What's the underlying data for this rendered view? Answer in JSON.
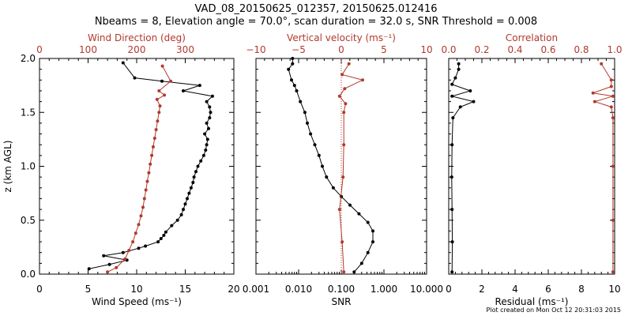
{
  "header": {
    "title_line1": "VAD_08_20150625_012357, 20150625.012416",
    "title_line2": "Nbeams = 8, Elevation angle = 70.0°, scan duration = 32.0 s, SNR Threshold = 0.008"
  },
  "footer": {
    "text": "Plot created on Mon Oct 12 20:31:03 2015"
  },
  "colors": {
    "black": "#000000",
    "red": "#b03a2e"
  },
  "chart_data": [
    {
      "type": "line",
      "title": "",
      "ylabel": "z (km AGL)",
      "ylim": [
        0,
        2.0
      ],
      "yticks": [
        "0.0",
        "0.5",
        "1.0",
        "1.5",
        "2.0"
      ],
      "bottom_axis": {
        "label": "Wind Speed (ms⁻¹)",
        "range": [
          0,
          20
        ],
        "ticks": [
          "0",
          "5",
          "10",
          "15",
          "20"
        ]
      },
      "top_axis": {
        "label": "Wind Direction (deg)",
        "range": [
          0,
          400
        ],
        "ticks": [
          "0",
          "100",
          "200",
          "300"
        ]
      },
      "series": [
        {
          "axis": "bottom",
          "color": "#000000",
          "points": [
            [
              5.1,
              0.05
            ],
            [
              7.2,
              0.09
            ],
            [
              9.0,
              0.13
            ],
            [
              6.6,
              0.17
            ],
            [
              8.6,
              0.2
            ],
            [
              10.2,
              0.24
            ],
            [
              10.9,
              0.26
            ],
            [
              12.2,
              0.3
            ],
            [
              12.5,
              0.33
            ],
            [
              12.8,
              0.36
            ],
            [
              13.0,
              0.39
            ],
            [
              13.6,
              0.45
            ],
            [
              14.2,
              0.5
            ],
            [
              14.6,
              0.55
            ],
            [
              14.8,
              0.6
            ],
            [
              15.0,
              0.65
            ],
            [
              15.2,
              0.7
            ],
            [
              15.4,
              0.75
            ],
            [
              15.6,
              0.8
            ],
            [
              15.8,
              0.85
            ],
            [
              15.9,
              0.9
            ],
            [
              16.1,
              0.95
            ],
            [
              16.3,
              1.0
            ],
            [
              16.6,
              1.05
            ],
            [
              16.9,
              1.1
            ],
            [
              17.1,
              1.15
            ],
            [
              17.2,
              1.2
            ],
            [
              17.3,
              1.25
            ],
            [
              17.0,
              1.3
            ],
            [
              17.4,
              1.35
            ],
            [
              17.2,
              1.4
            ],
            [
              17.5,
              1.45
            ],
            [
              17.6,
              1.5
            ],
            [
              17.5,
              1.55
            ],
            [
              17.2,
              1.6
            ],
            [
              17.8,
              1.65
            ],
            [
              14.8,
              1.7
            ],
            [
              16.5,
              1.75
            ],
            [
              12.6,
              1.79
            ],
            [
              9.8,
              1.82
            ],
            [
              8.6,
              1.96
            ]
          ]
        },
        {
          "axis": "top",
          "color": "#b03a2e",
          "points": [
            [
              140,
              0.02
            ],
            [
              158,
              0.06
            ],
            [
              176,
              0.14
            ],
            [
              184,
              0.22
            ],
            [
              192,
              0.3
            ],
            [
              198,
              0.38
            ],
            [
              204,
              0.46
            ],
            [
              209,
              0.54
            ],
            [
              213,
              0.62
            ],
            [
              216,
              0.7
            ],
            [
              219,
              0.78
            ],
            [
              222,
              0.86
            ],
            [
              225,
              0.94
            ],
            [
              228,
              1.02
            ],
            [
              231,
              1.1
            ],
            [
              234,
              1.18
            ],
            [
              237,
              1.26
            ],
            [
              240,
              1.34
            ],
            [
              243,
              1.42
            ],
            [
              246,
              1.5
            ],
            [
              248,
              1.56
            ],
            [
              242,
              1.62
            ],
            [
              257,
              1.66
            ],
            [
              246,
              1.7
            ],
            [
              270,
              1.79
            ],
            [
              253,
              1.93
            ]
          ]
        }
      ]
    },
    {
      "type": "line",
      "title": "",
      "xscale": "log",
      "bottom_axis": {
        "label": "SNR",
        "range": [
          0.001,
          10
        ],
        "ticks": [
          "0.001",
          "0.010",
          "0.100",
          "1.000",
          "10.000"
        ]
      },
      "top_axis": {
        "label": "Vertical velocity (ms⁻¹)",
        "range": [
          -10,
          10
        ],
        "ticks": [
          "−10",
          "−5",
          "0",
          "5",
          "10"
        ]
      },
      "ylim": [
        0,
        2.0
      ],
      "series": [
        {
          "axis": "bottom",
          "color": "#000000",
          "points": [
            [
              0.2,
              0.02
            ],
            [
              0.3,
              0.1
            ],
            [
              0.42,
              0.2
            ],
            [
              0.55,
              0.3
            ],
            [
              0.55,
              0.4
            ],
            [
              0.42,
              0.48
            ],
            [
              0.26,
              0.56
            ],
            [
              0.16,
              0.64
            ],
            [
              0.1,
              0.72
            ],
            [
              0.065,
              0.8
            ],
            [
              0.045,
              0.9
            ],
            [
              0.036,
              1.0
            ],
            [
              0.03,
              1.1
            ],
            [
              0.024,
              1.2
            ],
            [
              0.019,
              1.3
            ],
            [
              0.016,
              1.4
            ],
            [
              0.014,
              1.5
            ],
            [
              0.011,
              1.6
            ],
            [
              0.009,
              1.7
            ],
            [
              0.008,
              1.75
            ],
            [
              0.0068,
              1.8
            ],
            [
              0.0058,
              1.9
            ],
            [
              0.0072,
              1.95
            ],
            [
              0.0072,
              2.0
            ]
          ]
        },
        {
          "axis": "top",
          "color": "#b03a2e",
          "points": [
            [
              0.3,
              0.02
            ],
            [
              0.1,
              0.3
            ],
            [
              -0.2,
              0.6
            ],
            [
              0.2,
              0.9
            ],
            [
              0.3,
              1.2
            ],
            [
              0.3,
              1.5
            ],
            [
              0.5,
              1.58
            ],
            [
              -0.2,
              1.65
            ],
            [
              0.4,
              1.72
            ],
            [
              2.5,
              1.8
            ],
            [
              0.1,
              1.85
            ],
            [
              0.9,
              1.95
            ]
          ]
        }
      ]
    },
    {
      "type": "line",
      "title": "",
      "bottom_axis": {
        "label": "Residual (ms⁻¹)",
        "range": [
          0,
          10
        ],
        "ticks": [
          "0",
          "2",
          "4",
          "6",
          "8",
          "10"
        ]
      },
      "top_axis": {
        "label": "Correlation",
        "range": [
          0,
          1
        ],
        "ticks": [
          "0.0",
          "0.2",
          "0.4",
          "0.6",
          "0.8",
          "1.0"
        ]
      },
      "ylim": [
        0,
        2.0
      ],
      "series": [
        {
          "axis": "bottom",
          "color": "#000000",
          "points": [
            [
              0.2,
              0.02
            ],
            [
              0.22,
              0.3
            ],
            [
              0.2,
              0.6
            ],
            [
              0.18,
              0.9
            ],
            [
              0.2,
              1.2
            ],
            [
              0.25,
              1.45
            ],
            [
              0.7,
              1.55
            ],
            [
              1.5,
              1.6
            ],
            [
              0.2,
              1.65
            ],
            [
              1.3,
              1.7
            ],
            [
              0.2,
              1.76
            ],
            [
              0.4,
              1.82
            ],
            [
              0.6,
              1.9
            ],
            [
              0.6,
              1.95
            ]
          ]
        },
        {
          "axis": "top",
          "color": "#b03a2e",
          "points": [
            [
              0.99,
              0.02
            ],
            [
              0.99,
              0.5
            ],
            [
              0.99,
              1.0
            ],
            [
              0.99,
              1.45
            ],
            [
              0.98,
              1.55
            ],
            [
              0.88,
              1.6
            ],
            [
              0.99,
              1.65
            ],
            [
              0.87,
              1.68
            ],
            [
              0.98,
              1.74
            ],
            [
              0.98,
              1.8
            ],
            [
              0.92,
              1.95
            ]
          ]
        }
      ]
    }
  ]
}
